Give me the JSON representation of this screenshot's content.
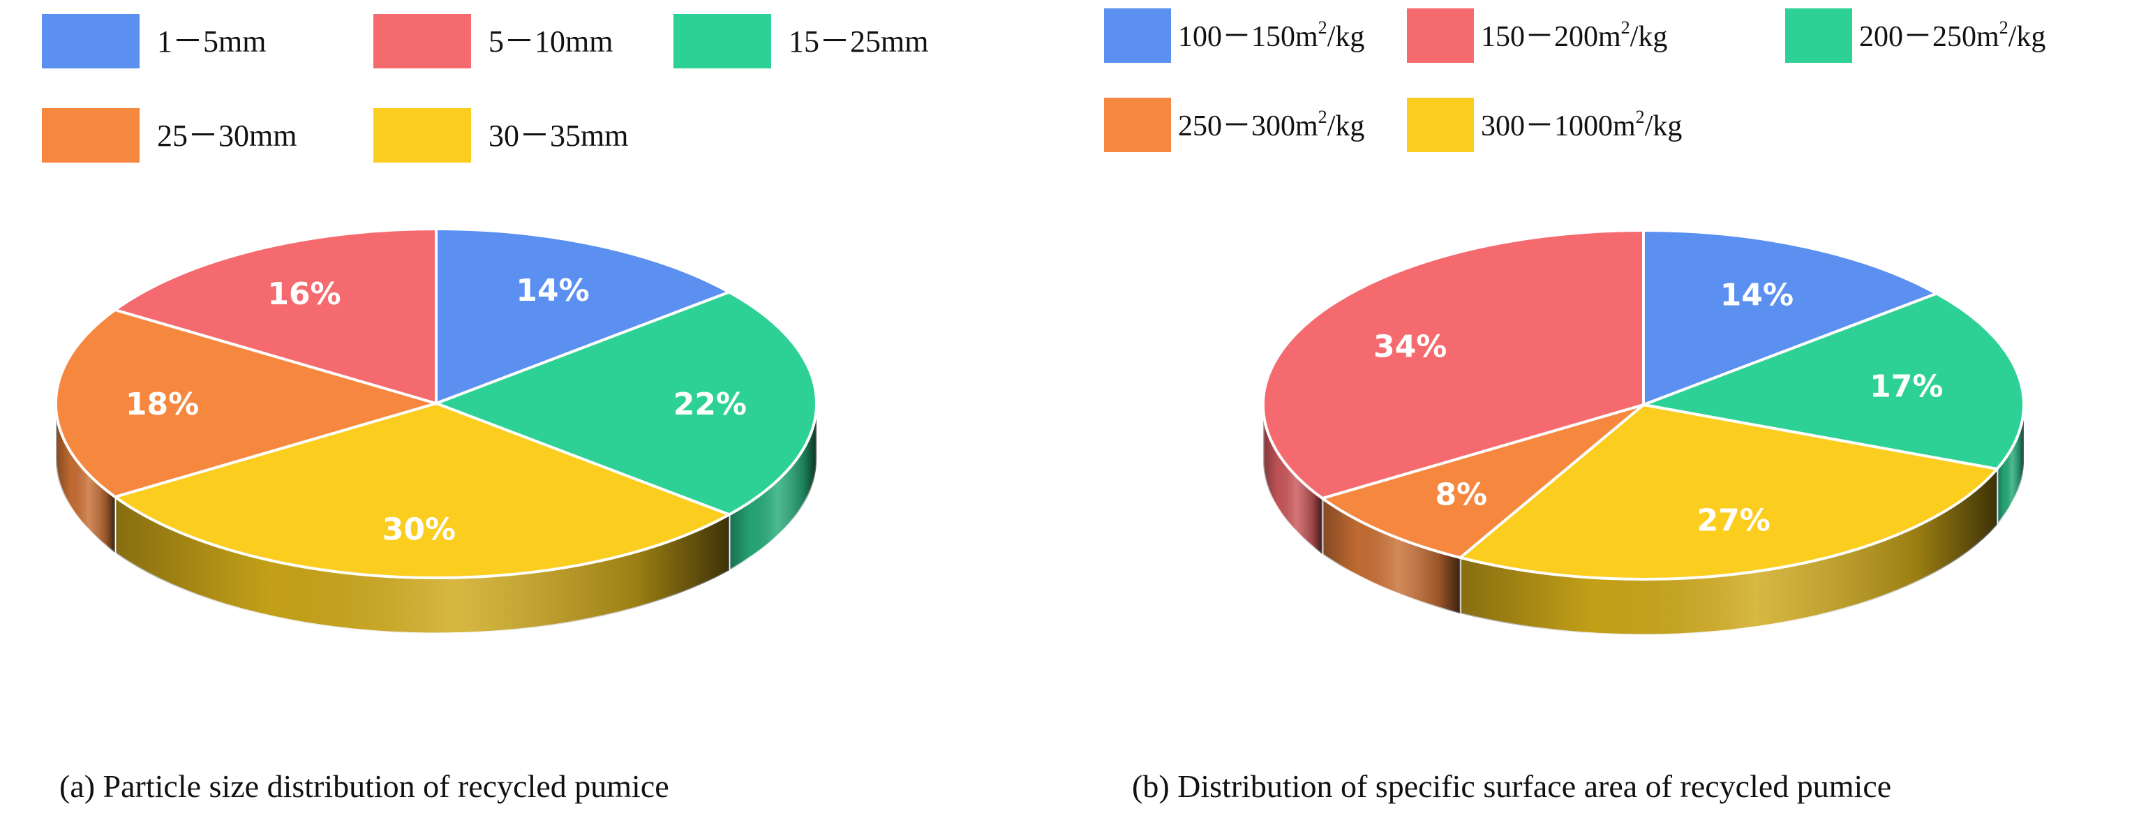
{
  "chart_data": [
    {
      "type": "pie",
      "title": "",
      "caption": "(a) Particle size distribution of recycled pumice",
      "legend_position": "top",
      "categories": [
        "1－5mm",
        "5－10mm",
        "15－25mm",
        "25－30mm",
        "30－35mm"
      ],
      "category_sup": [
        "",
        "",
        "",
        "",
        ""
      ],
      "category_tail": [
        "",
        "",
        "",
        "",
        ""
      ],
      "values": [
        14,
        16,
        22,
        18,
        30
      ],
      "value_labels": [
        "14%",
        "16%",
        "22%",
        "18%",
        "30%"
      ],
      "colors": [
        "#5b8ff0",
        "#f56a6e",
        "#2ed195",
        "#f5873f",
        "#fbcd1e"
      ],
      "slice_order": [
        0,
        2,
        4,
        3,
        1
      ]
    },
    {
      "type": "pie",
      "title": "",
      "caption": "(b) Distribution of specific surface area of recycled pumice",
      "legend_position": "top",
      "categories": [
        "100－150m2/kg",
        "150－200m2/kg",
        "200－250m2/kg",
        "250－300m2/kg",
        "300－1000m2/kg"
      ],
      "category_sup": [
        "2",
        "2",
        "2",
        "2",
        "2"
      ],
      "category_tail": [
        "/kg",
        "/kg",
        "/kg",
        "/kg",
        "/kg"
      ],
      "category_base": [
        "100－150m",
        "150－200m",
        "200－250m",
        "250－300m",
        "300－1000m"
      ],
      "values": [
        14,
        34,
        17,
        8,
        27
      ],
      "value_labels": [
        "14%",
        "34%",
        "17%",
        "8%",
        "27%"
      ],
      "colors": [
        "#5b8ff0",
        "#f56a6e",
        "#2ed195",
        "#f5873f",
        "#fbcd1e"
      ],
      "slice_order": [
        0,
        2,
        4,
        3,
        1
      ]
    }
  ]
}
